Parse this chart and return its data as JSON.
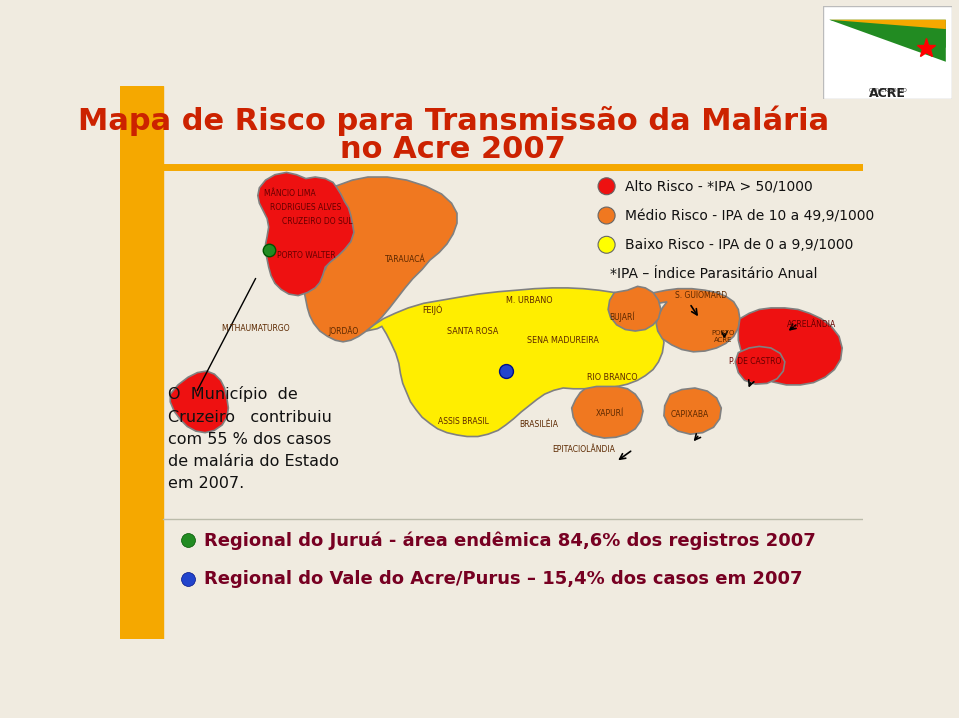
{
  "title_line1": "Mapa de Risco para Transmissão da Malária",
  "title_line2": "no Acre 2007",
  "title_color": "#cc2200",
  "bg_color": "#f0ebe0",
  "left_bar_color": "#f5a800",
  "legend_items": [
    {
      "color": "#ee1111",
      "text": "Alto Risco - *IPA > 50/1000"
    },
    {
      "color": "#f07820",
      "text": "Médio Risco - IPA de 10 a 49,9/1000"
    },
    {
      "color": "#ffff00",
      "text": "Baixo Risco - IPA de 0 a 9,9/1000"
    }
  ],
  "legend_note": "*IPA – Índice Parasitário Anual",
  "annotation_text": "O  Município  de\nCruzeiro   contribuiu\ncom 55 % dos casos\nde malária do Estado\nem 2007.",
  "bottom_text1": "Regional do Juruá - área endêmica 84,6% dos registros 2007",
  "bottom_text2": "Regional do Vale do Acre/Purus – 15,4% dos casos em 2007",
  "bottom_text_color": "#770022",
  "map_yellow": "#ffee00",
  "map_orange": "#f07820",
  "map_red": "#ee1111",
  "map_dark_red": "#cc0000",
  "border_color": "#808080",
  "border_lw": 1.2
}
